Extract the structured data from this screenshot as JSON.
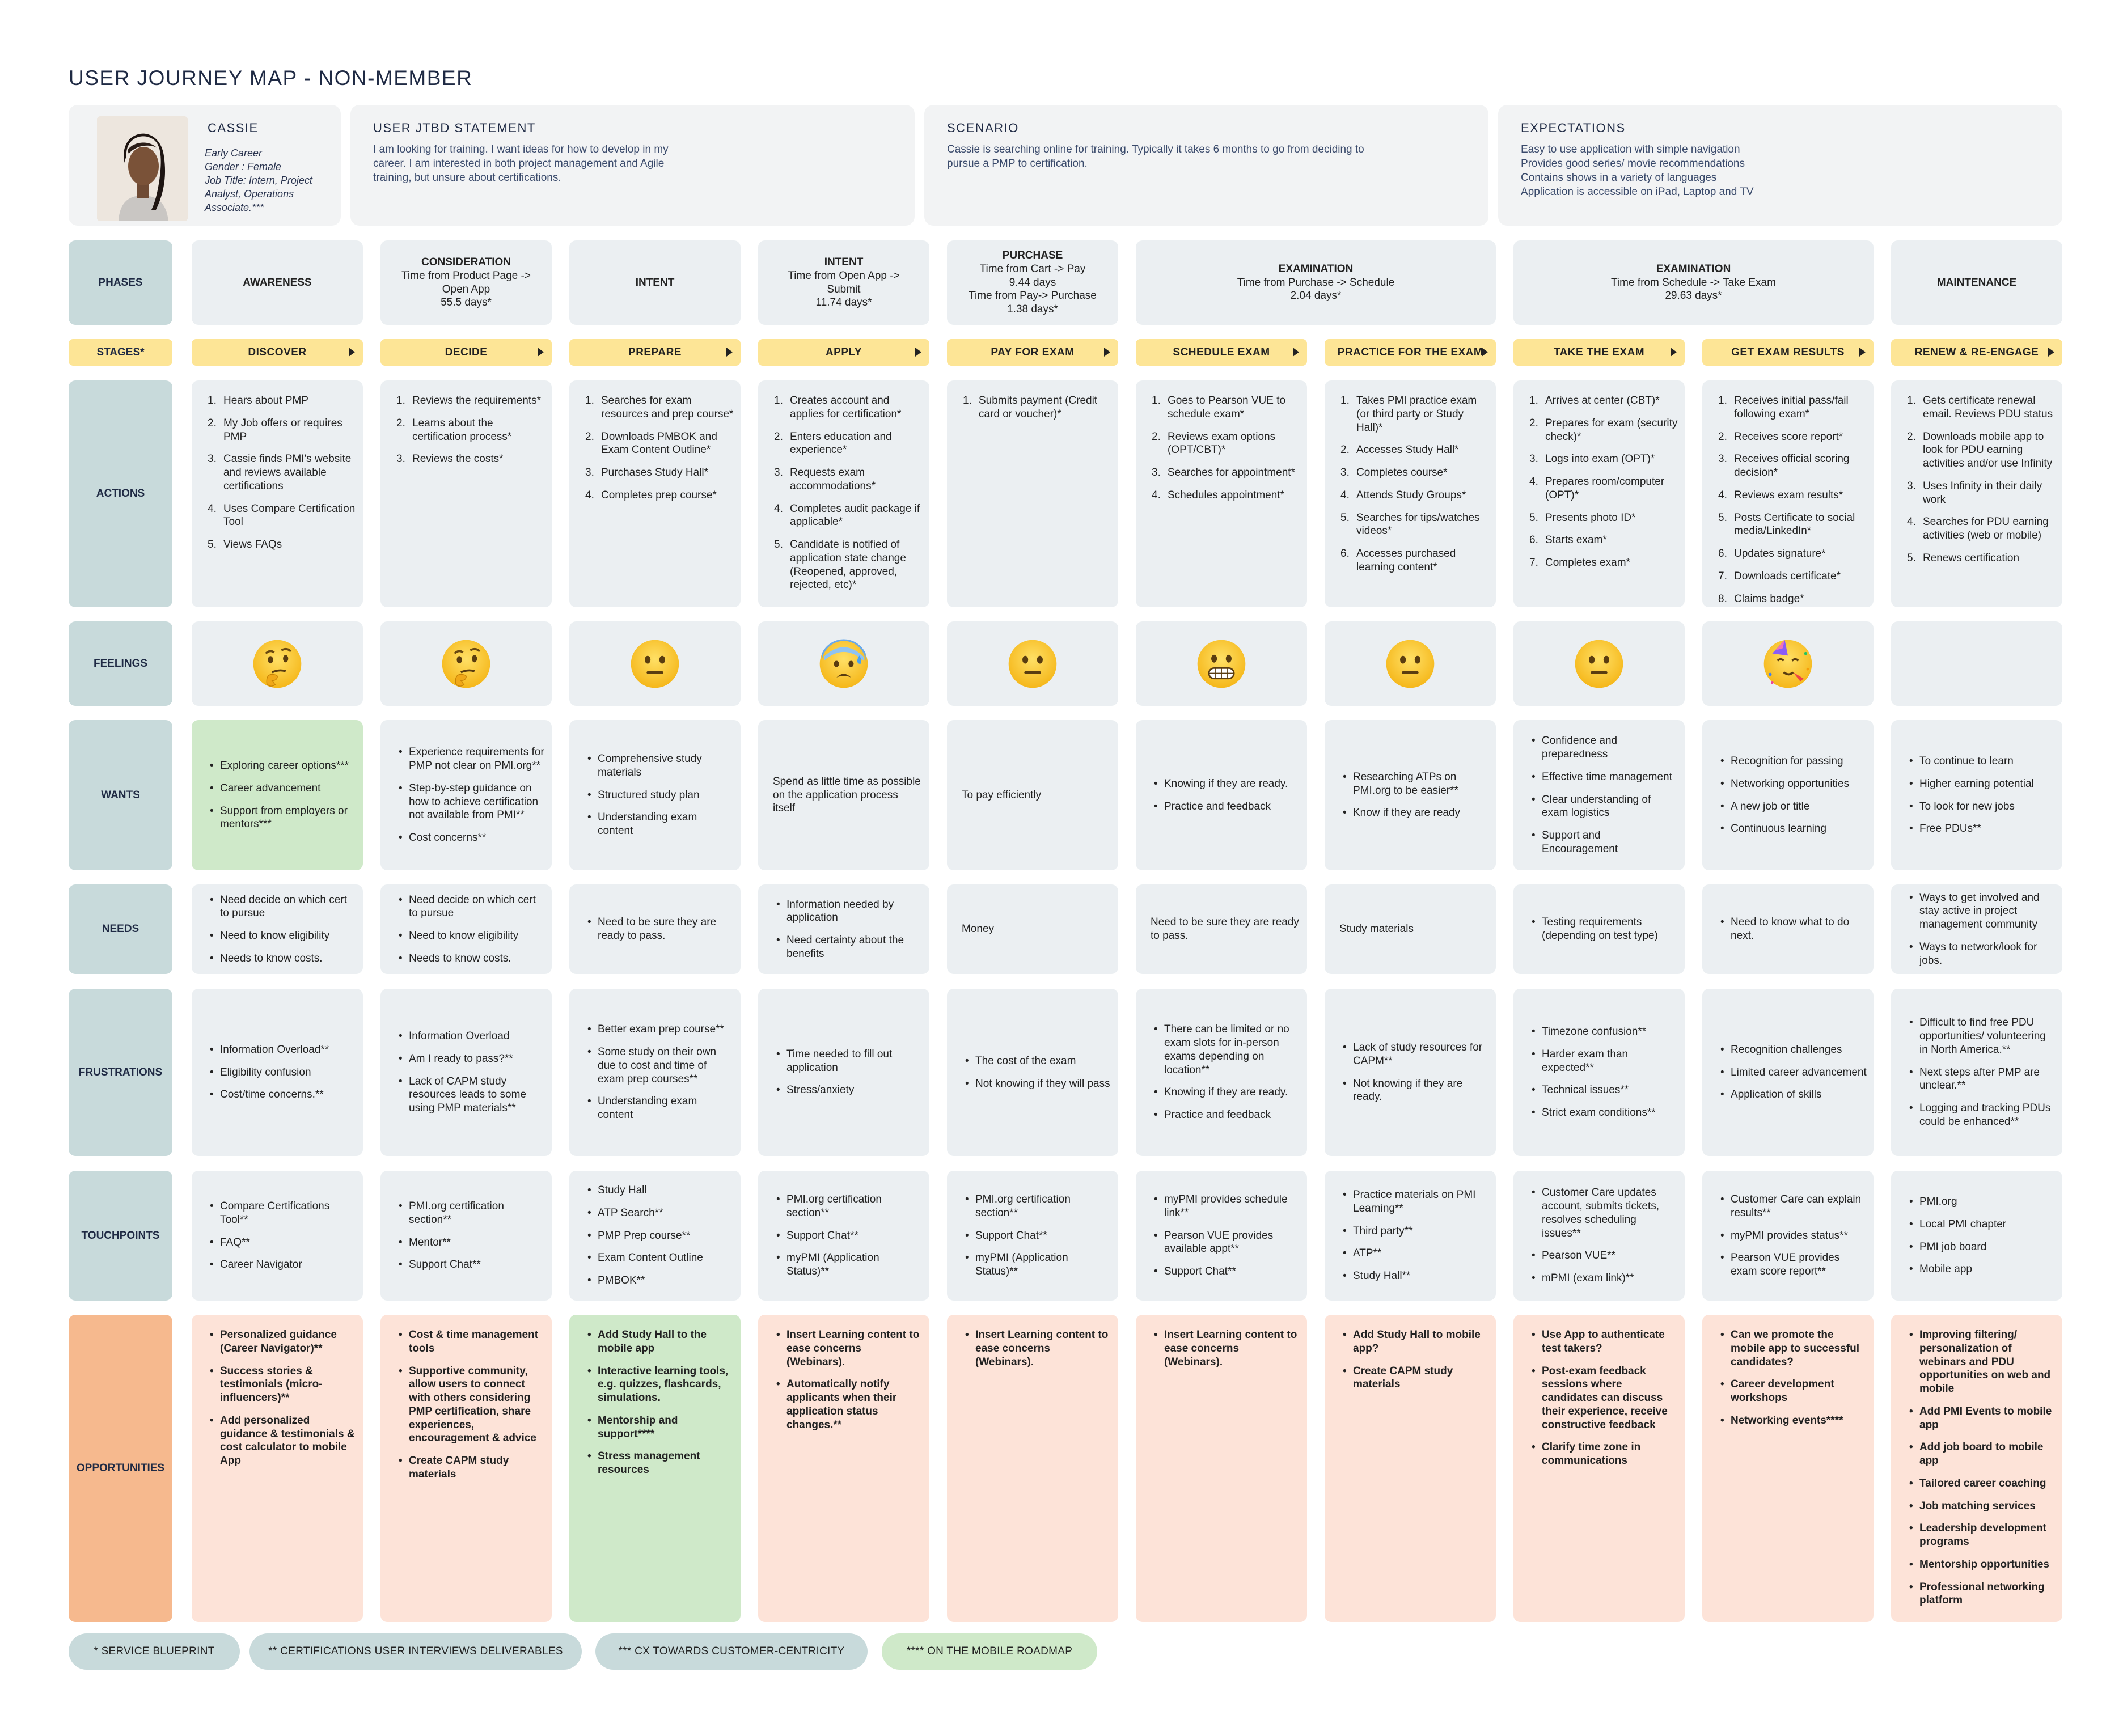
{
  "title": "USER JOURNEY MAP - NON-MEMBER",
  "persona": {
    "name": "CASSIE",
    "meta": [
      "Early Career",
      "Gender : Female",
      "Job Title: Intern, Project",
      "Analyst, Operations",
      "Associate.***"
    ]
  },
  "jtbd": {
    "title": "USER JTBD STATEMENT",
    "lines": [
      "I am looking for training. I want ideas for how to develop in my",
      "career. I am interested in both project management and Agile",
      "training, but unsure about certifications."
    ]
  },
  "scenario": {
    "title": "SCENARIO",
    "lines": [
      "Cassie is searching online for training. Typically it takes 6 months to go from deciding to",
      "pursue a PMP to certification."
    ]
  },
  "expectations": {
    "title": "EXPECTATIONS",
    "lines": [
      "Easy to use application with simple navigation",
      "Provides good series/ movie recommendations",
      "Contains shows in a variety of languages",
      "Application is accessible on iPad, Laptop and TV"
    ]
  },
  "row_labels": {
    "phases": "PHASES",
    "stages": "STAGES*",
    "actions": "ACTIONS",
    "feelings": "FEELINGS",
    "wants": "WANTS",
    "needs": "NEEDS",
    "frustrations": "FRUSTRATIONS",
    "touchpoints": "TOUCHPOINTS",
    "opportunities": "OPPORTUNITIES"
  },
  "phases": [
    {
      "title": "AWARENESS",
      "lines": []
    },
    {
      "title": "CONSIDERATION",
      "lines": [
        "Time from Product Page ->",
        "Open App",
        "55.5 days*"
      ]
    },
    {
      "title": "INTENT",
      "lines": []
    },
    {
      "title": "INTENT",
      "lines": [
        "Time from Open App ->",
        "Submit",
        "11.74 days*"
      ]
    },
    {
      "title": "PURCHASE",
      "lines": [
        "Time from Cart -> Pay",
        "9.44 days",
        "Time from Pay-> Purchase",
        "1.38 days*"
      ]
    },
    {
      "title": "EXAMINATION",
      "lines": [
        "Time from Purchase -> Schedule",
        "2.04 days*"
      ]
    },
    {
      "title": "EXAMINATION",
      "lines": [
        "Time from Schedule -> Take Exam",
        "29.63 days*"
      ]
    },
    {
      "title": "MAINTENANCE",
      "lines": []
    }
  ],
  "stages": [
    "DISCOVER",
    "DECIDE",
    "PREPARE",
    "APPLY",
    "PAY FOR EXAM",
    "SCHEDULE EXAM",
    "PRACTICE FOR THE EXAM",
    "TAKE THE EXAM",
    "GET EXAM RESULTS",
    "RENEW & RE-ENGAGE"
  ],
  "actions": [
    [
      "Hears about PMP",
      "My Job offers or requires PMP",
      "Cassie finds PMI's website and reviews available certifications",
      "Uses Compare Certification Tool",
      "Views FAQs"
    ],
    [
      "Reviews the requirements*",
      "Learns about the certification process*",
      "Reviews the costs*"
    ],
    [
      "Searches for exam resources and prep course*",
      "Downloads PMBOK and Exam Content Outline*",
      "Purchases Study Hall*",
      "Completes prep course*"
    ],
    [
      "Creates account and applies for certification*",
      "Enters education and experience*",
      "Requests exam accommodations*",
      "Completes audit package if applicable*",
      "Candidate is notified of application state change (Reopened, approved, rejected, etc)*"
    ],
    [
      "Submits payment (Credit card or voucher)*"
    ],
    [
      "Goes to Pearson VUE to schedule exam*",
      "Reviews exam options (OPT/CBT)*",
      "Searches for appointment*",
      "Schedules appointment*"
    ],
    [
      "Takes PMI practice exam (or third party or Study Hall)*",
      "Accesses Study Hall*",
      "Completes course*",
      "Attends Study Groups*",
      "Searches for tips/watches videos*",
      "Accesses purchased learning content*"
    ],
    [
      "Arrives at center (CBT)*",
      "Prepares for exam (security check)*",
      "Logs into exam (OPT)*",
      "Prepares room/computer (OPT)*",
      "Presents photo ID*",
      "Starts exam*",
      "Completes exam*"
    ],
    [
      "Receives initial pass/fail following exam*",
      "Receives score report*",
      "Receives official scoring decision*",
      "Reviews exam results*",
      "Posts Certificate to social media/LinkedIn*",
      "Updates signature*",
      "Downloads certificate*",
      "Claims badge*"
    ],
    [
      "Gets certificate renewal email. Reviews PDU status",
      "Downloads mobile app to look for PDU earning activities and/or use Infinity",
      "Uses Infinity in their daily work",
      "Searches for PDU earning activities (web or mobile)",
      "Renews certification"
    ]
  ],
  "feelings": [
    "thinking-face",
    "thinking-face",
    "neutral-face",
    "anxious-sweat-face",
    "neutral-face",
    "grimacing-face",
    "neutral-face",
    "neutral-face",
    "partying-face",
    ""
  ],
  "wants": [
    {
      "type": "list",
      "items": [
        "Exploring career options***",
        "Career advancement",
        "Support from employers or mentors***"
      ]
    },
    {
      "type": "list",
      "items": [
        "Experience requirements for PMP not clear on PMI.org**",
        "Step-by-step guidance on how to achieve certification not available from PMI**",
        "Cost concerns**"
      ]
    },
    {
      "type": "list",
      "items": [
        "Comprehensive study materials",
        "Structured study plan",
        "Understanding exam content"
      ]
    },
    {
      "type": "text",
      "text": "Spend as little time as possible on the application process itself"
    },
    {
      "type": "text",
      "text": "To pay efficiently"
    },
    {
      "type": "list",
      "items": [
        "Knowing if they are ready.",
        "Practice and feedback"
      ]
    },
    {
      "type": "list",
      "items": [
        "Researching ATPs on PMI.org to be easier**",
        "Know if they are ready"
      ]
    },
    {
      "type": "list",
      "items": [
        "Confidence and preparedness",
        "Effective time management",
        "Clear understanding of exam logistics",
        "Support and Encouragement"
      ]
    },
    {
      "type": "list",
      "items": [
        "Recognition for passing",
        "Networking opportunities",
        "A new job or title",
        "Continuous learning"
      ]
    },
    {
      "type": "list",
      "items": [
        "To continue to learn",
        "Higher earning potential",
        "To look for new jobs",
        "Free PDUs**"
      ]
    }
  ],
  "needs": [
    {
      "type": "list",
      "items": [
        "Need decide on which cert to pursue",
        "Need to know eligibility",
        "Needs to know costs."
      ]
    },
    {
      "type": "list",
      "items": [
        "Need decide on which cert to pursue",
        "Need to know eligibility",
        "Needs to know costs."
      ]
    },
    {
      "type": "list",
      "items": [
        "Need to be sure they are ready to pass."
      ]
    },
    {
      "type": "list",
      "items": [
        "Information needed by application",
        "Need certainty about the benefits"
      ]
    },
    {
      "type": "text",
      "text": "Money"
    },
    {
      "type": "text",
      "text": "Need to be sure they are ready to pass."
    },
    {
      "type": "text",
      "text": "Study materials"
    },
    {
      "type": "list",
      "items": [
        "Testing requirements (depending on test type)"
      ]
    },
    {
      "type": "list",
      "items": [
        "Need to know what to do next."
      ]
    },
    {
      "type": "list",
      "items": [
        "Ways to get involved and stay active in project management community",
        "Ways to network/look for jobs."
      ]
    }
  ],
  "frustrations": [
    [
      "Information Overload**",
      "Eligibility confusion",
      "Cost/time concerns.**"
    ],
    [
      "Information Overload",
      "Am I ready to pass?**",
      "Lack of CAPM study resources leads to some using PMP materials**"
    ],
    [
      "Better exam prep course**",
      "Some study on their own due to cost and time of exam prep courses**",
      "Understanding exam content"
    ],
    [
      "Time needed to fill out application",
      "Stress/anxiety"
    ],
    [
      "The cost of the exam",
      "Not knowing if they will pass"
    ],
    [
      "There can be limited or no exam slots for in-person exams depending on location**",
      "Knowing if they are ready.",
      "Practice and feedback"
    ],
    [
      "Lack of study resources for CAPM**",
      "Not knowing if they are ready."
    ],
    [
      "Timezone confusion**",
      "Harder exam than expected**",
      "Technical issues**",
      "Strict exam conditions**"
    ],
    [
      "Recognition challenges",
      "Limited career advancement",
      "Application of skills"
    ],
    [
      "Difficult to find free PDU opportunities/ volunteering in North America.**",
      "Next steps after PMP are unclear.**",
      "Logging and tracking PDUs could be enhanced**"
    ]
  ],
  "touchpoints": [
    [
      "Compare Certifications Tool**",
      "FAQ**",
      "Career Navigator"
    ],
    [
      "PMI.org certification section**",
      "Mentor**",
      "Support Chat**"
    ],
    [
      "Study Hall",
      "ATP Search**",
      "PMP Prep course**",
      "Exam Content Outline",
      "PMBOK**"
    ],
    [
      "PMI.org certification section**",
      "Support Chat**",
      "myPMI (Application Status)**"
    ],
    [
      "PMI.org certification section**",
      "Support Chat**",
      "myPMI (Application Status)**"
    ],
    [
      "myPMI provides schedule link**",
      "Pearson VUE provides available appt**",
      "Support Chat**"
    ],
    [
      "Practice materials on PMI Learning**",
      "Third party**",
      "ATP**",
      "Study Hall**"
    ],
    [
      "Customer Care updates account, submits tickets, resolves scheduling issues**",
      "Pearson VUE**",
      "mPMI (exam link)**"
    ],
    [
      "Customer Care can explain results**",
      "myPMI provides status**",
      "Pearson VUE provides exam score report**"
    ],
    [
      "PMI.org",
      "Local PMI chapter",
      "PMI job board",
      "Mobile app"
    ]
  ],
  "opportunities": [
    [
      "Personalized guidance (Career Navigator)**",
      "Success stories & testimonials (micro-influencers)**",
      "Add personalized guidance & testimonials & cost calculator to mobile App"
    ],
    [
      "Cost & time management tools",
      "Supportive community, allow users to connect with others considering PMP certification, share experiences, encouragement & advice",
      "Create CAPM study materials"
    ],
    [
      "Add Study Hall to the mobile app",
      "Interactive learning tools, e.g. quizzes, flashcards, simulations.",
      "Mentorship and support****",
      "Stress management resources"
    ],
    [
      "Insert Learning content to ease concerns (Webinars).",
      "Automatically notify applicants when their application status changes.**"
    ],
    [
      "Insert Learning content to ease concerns (Webinars)."
    ],
    [
      "Insert Learning content to ease concerns (Webinars)."
    ],
    [
      "Add Study Hall to mobile app?",
      "Create CAPM study materials"
    ],
    [
      "Use App to authenticate test takers?",
      "Post-exam feedback sessions where candidates can discuss their experience, receive constructive feedback",
      "Clarify time zone in communications"
    ],
    [
      "Can we promote the mobile app to successful candidates?",
      "Career development workshops",
      "Networking events****"
    ],
    [
      "Improving filtering/ personalization of webinars and PDU opportunities on web and mobile",
      "Add PMI Events to mobile app",
      "Add job board to mobile app",
      "Tailored career coaching",
      "Job matching services",
      "Leadership development programs",
      "Mentorship opportunities",
      "Professional networking platform"
    ]
  ],
  "legend": [
    "* SERVICE BLUEPRINT",
    "** CERTIFICATIONS USER INTERVIEWS DELIVERABLES",
    "*** CX TOWARDS CUSTOMER-CENTRICITY",
    "**** ON THE MOBILE ROADMAP"
  ],
  "colors": {
    "row_label": "#c8dadb",
    "stage": "#fde596",
    "cell": "#ebeff2",
    "green_highlight": "#cfe9c9",
    "opportunity": "#fde3d8",
    "opportunity_label": "#f6b98e",
    "title": "#1f2a44"
  }
}
